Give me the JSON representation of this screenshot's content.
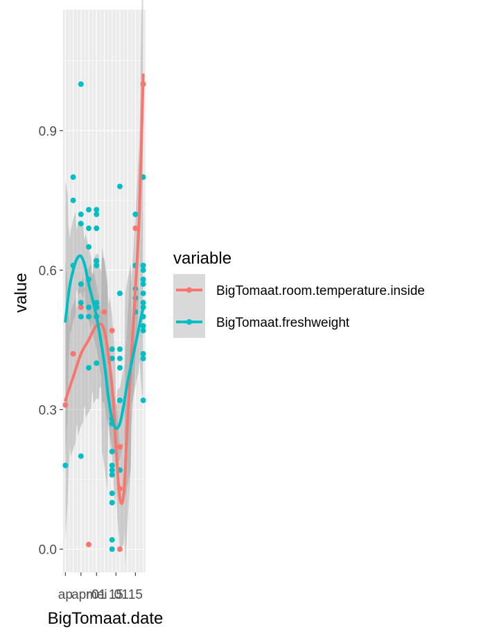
{
  "chart_data": {
    "type": "scatter",
    "title": "",
    "xlabel": "BigTomaat.date",
    "ylabel": "value",
    "x_tick_labels": [
      "ap",
      "apr",
      "mei",
      "01",
      "15",
      "01",
      "15"
    ],
    "y_ticks": [
      0.0,
      0.3,
      0.6,
      0.9
    ],
    "y_tick_labels": [
      "0.0",
      "0.3",
      "0.6",
      "0.9"
    ],
    "ylim": [
      -0.05,
      1.16
    ],
    "xlim": [
      -0.3,
      10.3
    ],
    "grid": true,
    "smoothing": "loess with confidence band",
    "legend": {
      "title": "variable",
      "position": "right"
    },
    "series": [
      {
        "name": "BigTomaat.room.temperature.inside",
        "color": "#F8766D",
        "points": [
          [
            0,
            0.31
          ],
          [
            1,
            0.42
          ],
          [
            2,
            0.52
          ],
          [
            3,
            0.01
          ],
          [
            4,
            0.69
          ],
          [
            5,
            0.51
          ],
          [
            6,
            0.47
          ],
          [
            7,
            0.22
          ],
          [
            7,
            0.13
          ],
          [
            7,
            0.0
          ],
          [
            9,
            0.69
          ],
          [
            10,
            1.0
          ]
        ],
        "smooth": [
          [
            0,
            0.32
          ],
          [
            1,
            0.37
          ],
          [
            2,
            0.42
          ],
          [
            3,
            0.45
          ],
          [
            4,
            0.48
          ],
          [
            5,
            0.47
          ],
          [
            6,
            0.35
          ],
          [
            6.5,
            0.22
          ],
          [
            7,
            0.11
          ],
          [
            7.5,
            0.12
          ],
          [
            8,
            0.28
          ],
          [
            8.5,
            0.42
          ],
          [
            9,
            0.56
          ],
          [
            9.5,
            0.72
          ],
          [
            10,
            1.02
          ]
        ]
      },
      {
        "name": "BigTomaat.freshweight",
        "color": "#00BFC4",
        "points": [
          [
            0,
            0.18
          ],
          [
            1,
            0.8
          ],
          [
            1,
            0.75
          ],
          [
            1,
            0.61
          ],
          [
            2,
            1.0
          ],
          [
            2,
            0.72
          ],
          [
            2,
            0.7
          ],
          [
            2,
            0.57
          ],
          [
            2,
            0.53
          ],
          [
            2,
            0.5
          ],
          [
            2,
            0.2
          ],
          [
            3,
            0.73
          ],
          [
            3,
            0.69
          ],
          [
            3,
            0.65
          ],
          [
            3,
            0.58
          ],
          [
            3,
            0.52
          ],
          [
            3,
            0.5
          ],
          [
            3,
            0.39
          ],
          [
            4,
            0.73
          ],
          [
            4,
            0.72
          ],
          [
            4,
            0.69
          ],
          [
            4,
            0.62
          ],
          [
            4,
            0.61
          ],
          [
            4,
            0.53
          ],
          [
            4,
            0.52
          ],
          [
            4,
            0.5
          ],
          [
            4,
            0.4
          ],
          [
            6,
            0.43
          ],
          [
            6,
            0.41
          ],
          [
            6,
            0.28
          ],
          [
            6,
            0.27
          ],
          [
            6,
            0.21
          ],
          [
            6,
            0.18
          ],
          [
            6,
            0.17
          ],
          [
            6,
            0.16
          ],
          [
            6,
            0.12
          ],
          [
            6,
            0.1
          ],
          [
            6,
            0.02
          ],
          [
            6,
            0.0
          ],
          [
            7,
            0.78
          ],
          [
            7,
            0.55
          ],
          [
            7,
            0.43
          ],
          [
            7,
            0.41
          ],
          [
            7,
            0.39
          ],
          [
            7,
            0.32
          ],
          [
            7,
            0.17
          ],
          [
            9,
            0.72
          ],
          [
            9,
            0.61
          ],
          [
            9,
            0.56
          ],
          [
            9,
            0.54
          ],
          [
            9,
            0.51
          ],
          [
            10,
            0.8
          ],
          [
            10,
            0.61
          ],
          [
            10,
            0.6
          ],
          [
            10,
            0.58
          ],
          [
            10,
            0.57
          ],
          [
            10,
            0.55
          ],
          [
            10,
            0.53
          ],
          [
            10,
            0.52
          ],
          [
            10,
            0.5
          ],
          [
            10,
            0.48
          ],
          [
            10,
            0.47
          ],
          [
            10,
            0.42
          ],
          [
            10,
            0.41
          ],
          [
            10,
            0.32
          ]
        ],
        "smooth": [
          [
            0,
            0.49
          ],
          [
            0.5,
            0.56
          ],
          [
            1,
            0.6
          ],
          [
            1.5,
            0.625
          ],
          [
            2,
            0.63
          ],
          [
            2.5,
            0.61
          ],
          [
            3,
            0.57
          ],
          [
            4,
            0.5
          ],
          [
            5,
            0.4
          ],
          [
            5.5,
            0.33
          ],
          [
            6,
            0.28
          ],
          [
            6.5,
            0.26
          ],
          [
            7,
            0.27
          ],
          [
            7.5,
            0.31
          ],
          [
            8,
            0.36
          ],
          [
            9,
            0.44
          ],
          [
            10,
            0.52
          ]
        ]
      }
    ]
  }
}
